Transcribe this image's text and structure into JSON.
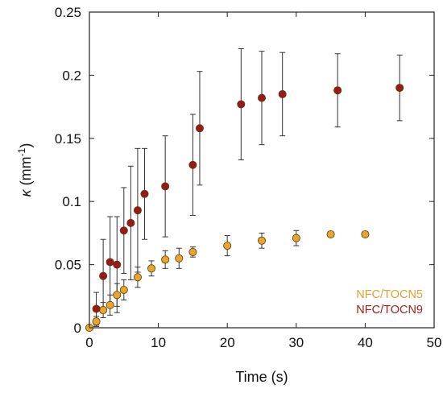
{
  "chart_data": {
    "type": "scatter",
    "xlabel": "Time (s)",
    "ylabel": {
      "symbol": "κ",
      "unit_open": " (mm",
      "unit_exp": "-1",
      "unit_close": ")"
    },
    "xlim": [
      0,
      50
    ],
    "ylim": [
      0,
      0.25
    ],
    "xticks": [
      "0",
      "10",
      "20",
      "30",
      "40",
      "50"
    ],
    "yticks": [
      "0",
      "0.05",
      "0.1",
      "0.15",
      "0.2",
      "0.25"
    ],
    "grid": false,
    "legend_position": "bottom-right",
    "series": [
      {
        "name": "NFC/TOCN5",
        "color": "#e8a52a",
        "text_color": "#e0a030",
        "points": [
          {
            "x": 0,
            "y": 0.0,
            "err": 0
          },
          {
            "x": 1,
            "y": 0.005,
            "err": 0.004
          },
          {
            "x": 2,
            "y": 0.014,
            "err": 0.006
          },
          {
            "x": 3,
            "y": 0.018,
            "err": 0.008
          },
          {
            "x": 4,
            "y": 0.026,
            "err": 0.009
          },
          {
            "x": 5,
            "y": 0.03,
            "err": 0.008
          },
          {
            "x": 7,
            "y": 0.04,
            "err": 0.008
          },
          {
            "x": 9,
            "y": 0.047,
            "err": 0.006
          },
          {
            "x": 11,
            "y": 0.054,
            "err": 0.007
          },
          {
            "x": 13,
            "y": 0.055,
            "err": 0.008
          },
          {
            "x": 15,
            "y": 0.06,
            "err": 0.004
          },
          {
            "x": 20,
            "y": 0.065,
            "err": 0.008
          },
          {
            "x": 25,
            "y": 0.069,
            "err": 0.006
          },
          {
            "x": 30,
            "y": 0.071,
            "err": 0.006
          },
          {
            "x": 35,
            "y": 0.074,
            "err": 0.002
          },
          {
            "x": 40,
            "y": 0.074,
            "err": 0.002
          }
        ]
      },
      {
        "name": "NFC/TOCN9",
        "color": "#9a1a1a",
        "text_color": "#a02020",
        "points": [
          {
            "x": 1,
            "y": 0.015,
            "err": 0.013
          },
          {
            "x": 2,
            "y": 0.041,
            "err": 0.029
          },
          {
            "x": 3,
            "y": 0.052,
            "err": 0.036
          },
          {
            "x": 4,
            "y": 0.05,
            "err": 0.038
          },
          {
            "x": 5,
            "y": 0.077,
            "err": 0.034
          },
          {
            "x": 6,
            "y": 0.083,
            "err": 0.045
          },
          {
            "x": 7,
            "y": 0.093,
            "err": 0.049
          },
          {
            "x": 8,
            "y": 0.106,
            "err": 0.036
          },
          {
            "x": 11,
            "y": 0.112,
            "err": 0.04
          },
          {
            "x": 15,
            "y": 0.129,
            "err": 0.04
          },
          {
            "x": 16,
            "y": 0.158,
            "err": 0.045
          },
          {
            "x": 22,
            "y": 0.177,
            "err": 0.044
          },
          {
            "x": 25,
            "y": 0.182,
            "err": 0.037
          },
          {
            "x": 28,
            "y": 0.185,
            "err": 0.033
          },
          {
            "x": 36,
            "y": 0.188,
            "err": 0.029
          },
          {
            "x": 45,
            "y": 0.19,
            "err": 0.026
          }
        ]
      }
    ]
  }
}
